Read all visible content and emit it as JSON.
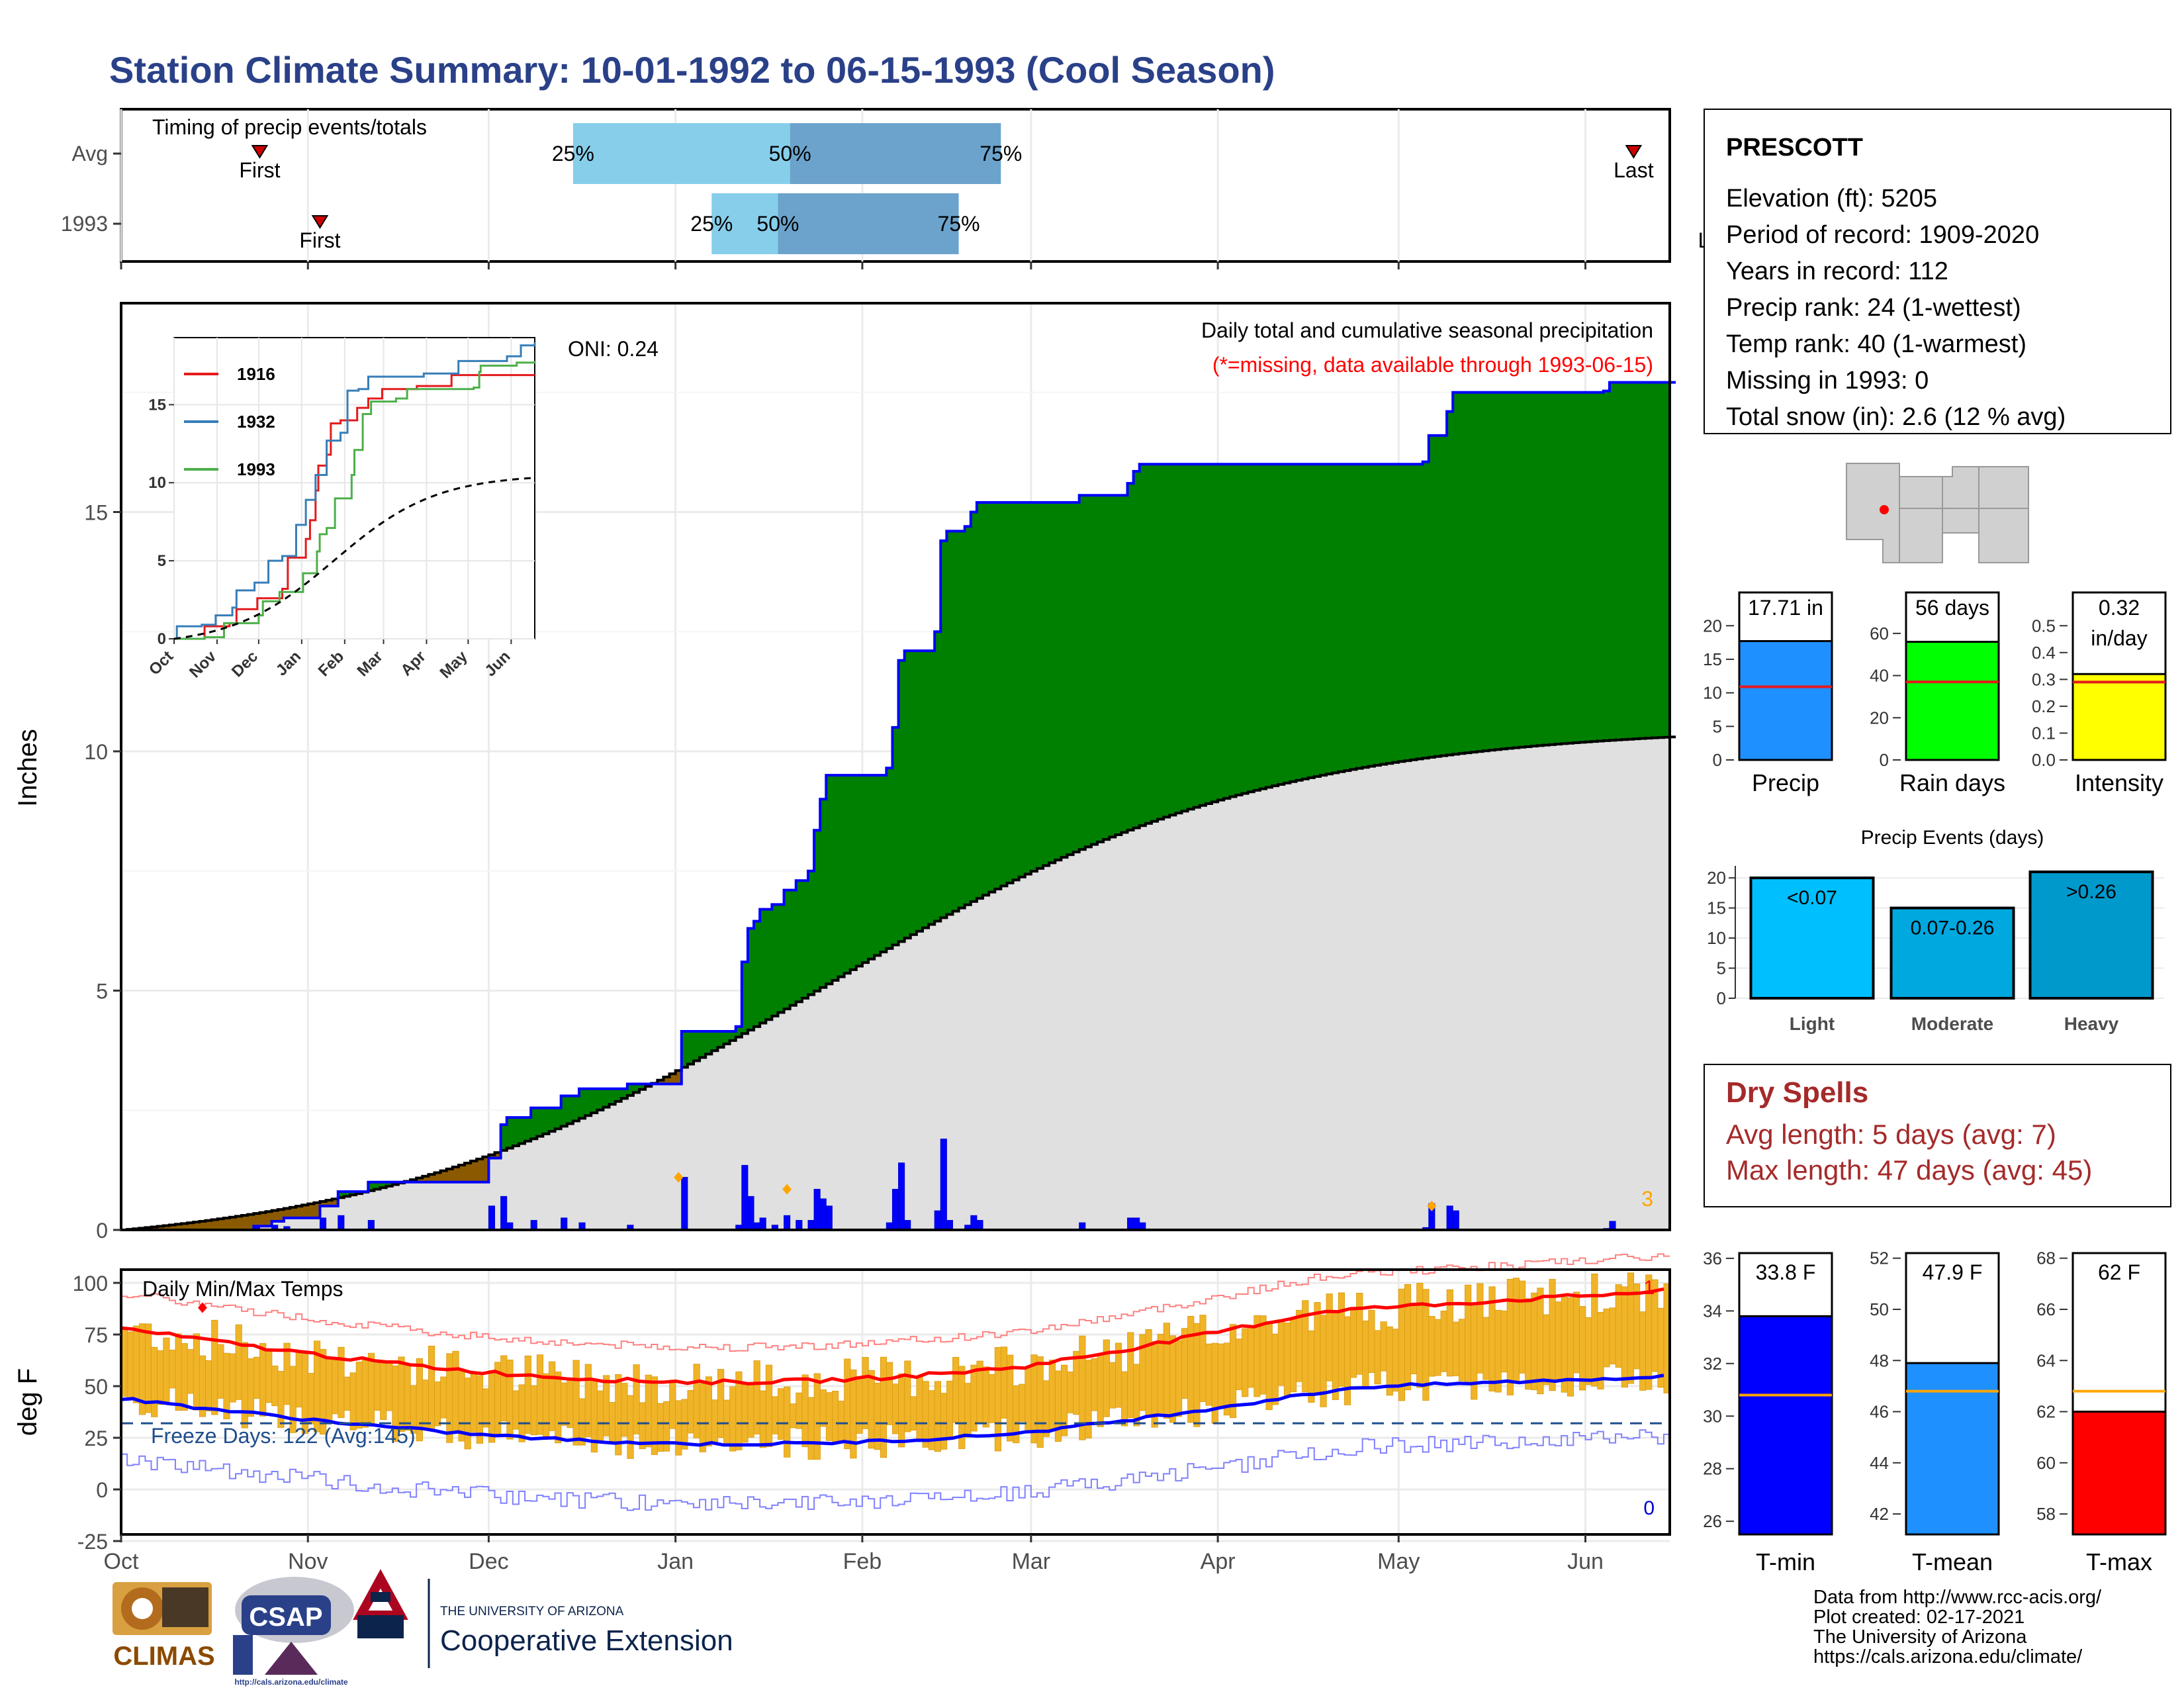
{
  "title": "Station Climate Summary: 10-01-1992 to 06-15-1993 (Cool Season)",
  "months": [
    "Oct",
    "Nov",
    "Dec",
    "Jan",
    "Feb",
    "Mar",
    "Apr",
    "May",
    "Jun"
  ],
  "timing": {
    "label": "Timing of precip events/totals",
    "rows": [
      {
        "name": "Avg",
        "first_day": 23,
        "last_day": 251,
        "p25_day": 75,
        "p50_day": 111,
        "p75_day": 146
      },
      {
        "name": "1993",
        "first_day": 33,
        "last_day": 265,
        "p25_day": 98,
        "p50_day": 109,
        "p75_day": 139
      }
    ],
    "first_label": "First",
    "last_label": "Last",
    "pct_labels": [
      "25%",
      "50%",
      "75%"
    ]
  },
  "precip": {
    "ylabel": "Inches",
    "title": "Daily total and cumulative seasonal precipitation",
    "missing_note": "(*=missing, data available through 1993-06-15)",
    "oni": "ONI: 0.24",
    "count_label": "3",
    "yticks": [
      "0",
      "5",
      "10",
      "15"
    ],
    "colors": {
      "above": "#008000",
      "below": "#8B5A00",
      "avg_fill": "#E0E0E0",
      "line": "#0000FF"
    }
  },
  "inset": {
    "legend": [
      {
        "name": "1916",
        "color": "#E41A1C"
      },
      {
        "name": "1932",
        "color": "#377EB8"
      },
      {
        "name": "1993",
        "color": "#4DAF4A"
      }
    ],
    "yticks": [
      "0",
      "5",
      "10",
      "15"
    ],
    "months": [
      "Oct",
      "Nov",
      "Dec",
      "Jan",
      "Feb",
      "Mar",
      "Apr",
      "May",
      "Jun"
    ]
  },
  "station": {
    "name": "PRESCOTT",
    "lines": [
      "Elevation (ft): 5205",
      "Period of record: 1909-2020",
      "Years in record: 112",
      "Precip rank: 24 (1-wettest)",
      "Temp rank: 40 (1-warmest)",
      "Missing in 1993: 0",
      "Total snow (in): 2.6 (12 % avg)"
    ]
  },
  "mini_bars": [
    {
      "label": "Precip",
      "value_text": "17.71 in",
      "value": 17.71,
      "avg": 10.9,
      "ymax": 22,
      "ticks": [
        "0",
        "5",
        "10",
        "15",
        "20"
      ],
      "color": "#1E90FF"
    },
    {
      "label": "Rain days",
      "value_text": "56 days",
      "value": 56,
      "avg": 37,
      "ymax": 70,
      "ticks": [
        "0",
        "20",
        "40",
        "60"
      ],
      "color": "#00FF00"
    },
    {
      "label": "Intensity",
      "value_text": "0.32 in/day",
      "value": 0.32,
      "avg": 0.29,
      "ymax": 0.55,
      "ticks": [
        "0.0",
        "0.1",
        "0.2",
        "0.3",
        "0.4",
        "0.5"
      ],
      "color": "#FFFF00"
    }
  ],
  "events": {
    "title": "Precip Events (days)",
    "ticks": [
      "0",
      "5",
      "10",
      "15",
      "20"
    ],
    "bars": [
      {
        "cat": "Light",
        "label": "<0.07",
        "value": 20,
        "color": "#00BFFF"
      },
      {
        "cat": "Moderate",
        "label": "0.07-0.26",
        "value": 15,
        "color": "#00A8E0"
      },
      {
        "cat": "Heavy",
        "label": ">0.26",
        "value": 21,
        "color": "#0099CC"
      }
    ]
  },
  "dry": {
    "title": "Dry Spells",
    "lines": [
      "Avg length: 5 days (avg: 7)",
      "Max length: 47 days (avg: 45)"
    ]
  },
  "temps": {
    "ylabel": "deg F",
    "title": "Daily Min/Max Temps",
    "freeze": "Freeze Days: 122 (Avg:145)",
    "yticks": [
      "-25",
      "0",
      "25",
      "50",
      "75",
      "100"
    ],
    "count_max": "1",
    "count_min": "0"
  },
  "temp_bars": [
    {
      "label": "T-min",
      "value_text": "33.8 F",
      "value": 33.8,
      "avg": 30.8,
      "ymin": 25.5,
      "ymax": 36.2,
      "ticks": [
        "26",
        "28",
        "30",
        "32",
        "34",
        "36"
      ],
      "color": "#0000FF"
    },
    {
      "label": "T-mean",
      "value_text": "47.9 F",
      "value": 47.9,
      "avg": 46.8,
      "ymin": 41.2,
      "ymax": 52.2,
      "ticks": [
        "42",
        "44",
        "46",
        "48",
        "50",
        "52"
      ],
      "color": "#1E90FF"
    },
    {
      "label": "T-max",
      "value_text": "62 F",
      "value": 62,
      "avg": 62.8,
      "ymin": 57.2,
      "ymax": 68.2,
      "ticks": [
        "58",
        "60",
        "62",
        "64",
        "66",
        "68"
      ],
      "color": "#FF0000"
    }
  ],
  "footer": {
    "lines": [
      "Data from http://www.rcc-acis.org/",
      "Plot created: 02-17-2021",
      "The University of Arizona",
      "https://cals.arizona.edu/climate/"
    ],
    "logos": {
      "climas": "CLIMAS",
      "csap": "CSAP",
      "csap_url": "http://cals.arizona.edu/climate",
      "ua_small": "THE UNIVERSITY OF ARIZONA",
      "ua_big": "Cooperative Extension"
    }
  }
}
